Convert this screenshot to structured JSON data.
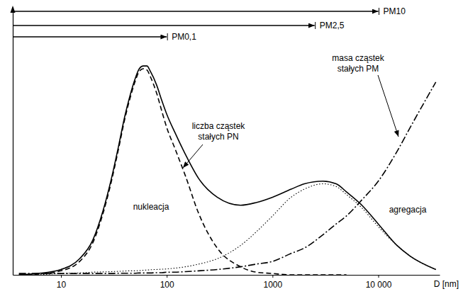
{
  "chart_data": {
    "type": "line",
    "log": "x",
    "xlabel": "D [nm]",
    "xlim": [
      3.5,
      38000
    ],
    "xticks": [
      10,
      100,
      1000,
      {
        "value": 10000,
        "label": "10 000"
      }
    ],
    "ylim": [
      0,
      100
    ],
    "tick_labels": "x",
    "x": [
      4,
      6,
      10,
      15,
      20,
      25,
      30,
      35,
      40,
      45,
      50,
      55,
      60,
      65,
      70,
      80,
      90,
      100,
      120,
      150,
      200,
      300,
      500,
      700,
      1000,
      1500,
      2000,
      3000,
      4000,
      5000,
      7000,
      10000,
      15000,
      20000,
      35000
    ],
    "series": [
      {
        "name": "liczba cząstek stałych PN",
        "color": "#000000",
        "line_style": "solid",
        "values": [
          0,
          0.5,
          2,
          6,
          13,
          24,
          36,
          48,
          59,
          67,
          73,
          77,
          78,
          78,
          76,
          71,
          65,
          60,
          53,
          45,
          36,
          29,
          26,
          27,
          29,
          32,
          34,
          35,
          34,
          31,
          26,
          19,
          11,
          7,
          2
        ]
      },
      {
        "name": "nukleacja",
        "color": "#000000",
        "line_style": "dashed",
        "values": [
          0,
          0.3,
          1.5,
          5,
          12,
          23,
          35,
          47,
          58,
          66,
          72,
          76,
          77,
          76.5,
          74,
          68,
          61,
          55,
          47,
          37,
          23,
          10,
          3,
          1,
          0.5,
          0,
          0,
          0,
          0,
          0,
          null,
          null,
          null,
          null,
          null
        ]
      },
      {
        "name": "agregacja",
        "color": "#000000",
        "line_style": "dotted",
        "values": [
          null,
          0,
          0.5,
          0.7,
          1,
          1.1,
          1.2,
          1.3,
          1.4,
          1.5,
          1.5,
          1.6,
          1.7,
          1.8,
          1.9,
          2,
          2.1,
          2.2,
          2.5,
          3,
          4,
          6,
          11,
          16,
          22,
          29,
          32,
          34,
          33,
          30,
          25,
          18,
          11,
          7,
          2
        ]
      },
      {
        "name": "masa cząstek stałych PM",
        "color": "#000000",
        "line_style": "dashdot",
        "values": [
          0.5,
          0.5,
          0.5,
          0.5,
          0.5,
          0.5,
          0.5,
          0.6,
          0.6,
          0.6,
          0.6,
          0.7,
          0.7,
          0.7,
          0.7,
          0.8,
          0.8,
          1,
          1,
          1.2,
          1.5,
          2,
          3,
          4,
          5,
          8,
          10,
          15,
          19,
          22,
          28,
          35,
          46,
          55,
          72
        ]
      }
    ],
    "ranges": [
      {
        "label": "PM10",
        "value": 10000
      },
      {
        "label": "PM2,5",
        "value": 2500
      },
      {
        "label": "PM0,1",
        "value": 100
      }
    ]
  }
}
